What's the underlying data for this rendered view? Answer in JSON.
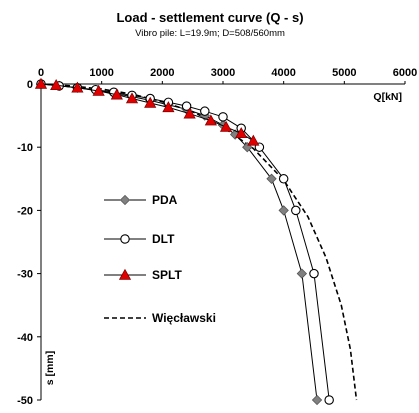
{
  "chart_data": {
    "type": "line",
    "title": "Load - settlement curve (Q - s)",
    "subtitle": "Vibro pile: L=19.9m; D=508/560mm",
    "xlabel": "Q[kN]",
    "ylabel": "s [mm]",
    "xlim": [
      0,
      6000
    ],
    "ylim": [
      -50,
      0
    ],
    "x_ticks": [
      "0",
      "1000",
      "2000",
      "3000",
      "4000",
      "5000",
      "6000"
    ],
    "y_ticks": [
      "0",
      "-10",
      "-20",
      "-30",
      "-40",
      "-50"
    ],
    "x_axis_position": "top",
    "grid": false,
    "legend_position": "left-middle",
    "series": [
      {
        "name": "PDA",
        "marker": "diamond",
        "color": "#808080",
        "points": [
          [
            0,
            0
          ],
          [
            300,
            -0.3
          ],
          [
            600,
            -0.6
          ],
          [
            900,
            -1.0
          ],
          [
            1200,
            -1.5
          ],
          [
            1500,
            -2.0
          ],
          [
            1800,
            -2.6
          ],
          [
            2100,
            -3.3
          ],
          [
            2400,
            -4.0
          ],
          [
            2700,
            -5.0
          ],
          [
            3000,
            -6.5
          ],
          [
            3200,
            -8.0
          ],
          [
            3400,
            -10.0
          ],
          [
            3800,
            -15.0
          ],
          [
            4000,
            -20.0
          ],
          [
            4300,
            -30.0
          ],
          [
            4550,
            -50.0
          ]
        ]
      },
      {
        "name": "DLT",
        "marker": "circle",
        "color": "#000000",
        "points": [
          [
            0,
            0
          ],
          [
            300,
            -0.3
          ],
          [
            600,
            -0.6
          ],
          [
            900,
            -0.9
          ],
          [
            1200,
            -1.3
          ],
          [
            1500,
            -1.8
          ],
          [
            1800,
            -2.3
          ],
          [
            2100,
            -2.9
          ],
          [
            2400,
            -3.5
          ],
          [
            2700,
            -4.3
          ],
          [
            3000,
            -5.2
          ],
          [
            3300,
            -7.0
          ],
          [
            3600,
            -10.0
          ],
          [
            4000,
            -15.0
          ],
          [
            4200,
            -20.0
          ],
          [
            4500,
            -30.0
          ],
          [
            4750,
            -50.0
          ]
        ]
      },
      {
        "name": "SPLT",
        "marker": "triangle",
        "color": "#e00000",
        "points": [
          [
            0,
            0
          ],
          [
            250,
            -0.2
          ],
          [
            600,
            -0.6
          ],
          [
            950,
            -1.1
          ],
          [
            1250,
            -1.7
          ],
          [
            1500,
            -2.3
          ],
          [
            1800,
            -3.0
          ],
          [
            2100,
            -3.7
          ],
          [
            2450,
            -4.7
          ],
          [
            2800,
            -5.8
          ],
          [
            3050,
            -6.8
          ],
          [
            3300,
            -7.8
          ],
          [
            3500,
            -9.0
          ]
        ]
      },
      {
        "name": "Więcławski",
        "marker": "none",
        "dash": "dashed",
        "color": "#000000",
        "points": [
          [
            0,
            0
          ],
          [
            500,
            -0.3
          ],
          [
            1000,
            -0.8
          ],
          [
            1500,
            -1.6
          ],
          [
            2000,
            -2.8
          ],
          [
            2500,
            -4.4
          ],
          [
            3000,
            -6.8
          ],
          [
            3500,
            -10.2
          ],
          [
            4000,
            -15.2
          ],
          [
            4400,
            -21.0
          ],
          [
            4700,
            -27.5
          ],
          [
            4950,
            -35.0
          ],
          [
            5100,
            -42.0
          ],
          [
            5200,
            -50.0
          ]
        ]
      }
    ]
  }
}
